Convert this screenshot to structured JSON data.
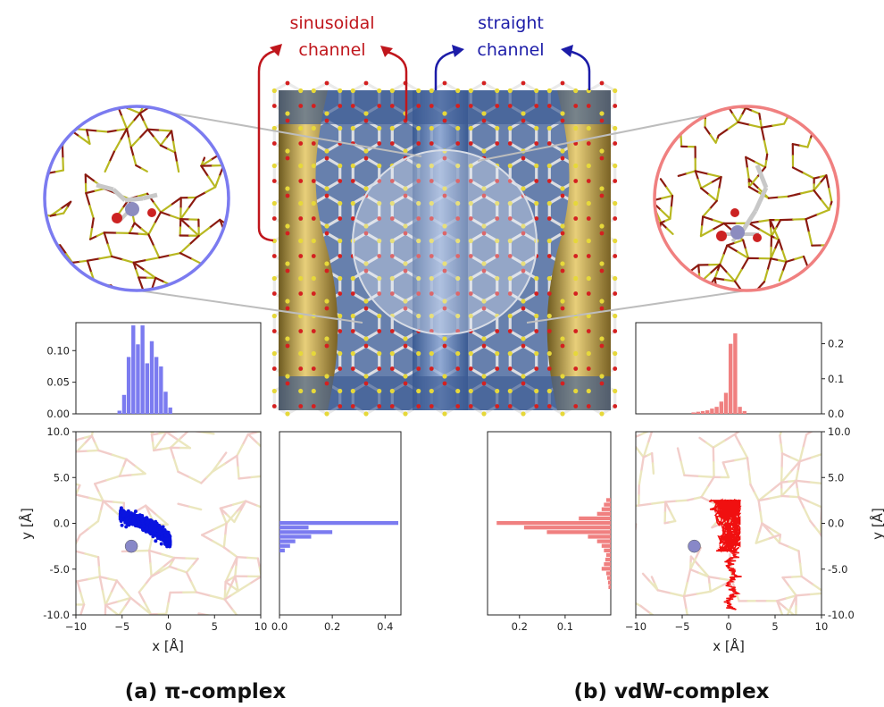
{
  "labels": {
    "sinusoidal": [
      "sinusoidal",
      "channel"
    ],
    "straight": [
      "straight",
      "channel"
    ],
    "caption_a": "(a) π-complex",
    "caption_b": "(b) vdW-complex"
  },
  "colors": {
    "blue": "#7b7bf0",
    "blue_dark": "#0a14e0",
    "red": "#f08080",
    "red_dark": "#f01010",
    "sinusoidal_label": "#c0161c",
    "straight_label": "#1c1ca8",
    "framework_gold": "#c8a840",
    "framework_blue": "#5f7fb8"
  },
  "chart_data": [
    {
      "id": "a-histogram-x",
      "type": "bar",
      "x": [
        -5.25,
        -4.75,
        -4.25,
        -3.75,
        -3.25,
        -2.75,
        -2.25,
        -1.75,
        -1.25,
        -0.75,
        -0.25,
        0.25
      ],
      "values": [
        0.005,
        0.03,
        0.09,
        0.14,
        0.11,
        0.14,
        0.08,
        0.115,
        0.09,
        0.075,
        0.035,
        0.01
      ],
      "xlim": [
        -10,
        10
      ],
      "ylim": [
        0,
        0.14
      ],
      "yticks": [
        0.0,
        0.05,
        0.1
      ],
      "ytick_labels": [
        "0.00",
        "0.05",
        "0.10"
      ],
      "ytick_side": "left"
    },
    {
      "id": "a-scatter",
      "type": "scatter",
      "xlabel": "x [Å]",
      "ylabel": "y [Å]",
      "xlim": [
        -10,
        10
      ],
      "ylim": [
        -10,
        10
      ],
      "xticks": [
        -10,
        -5,
        0,
        5,
        10
      ],
      "xtick_labels": [
        "−10",
        "−5",
        "0",
        "5",
        "10"
      ],
      "yticks": [
        10,
        5,
        0,
        -5,
        -10
      ],
      "ytick_labels": [
        "10.0",
        "5.0",
        "0.0",
        "-5.0",
        "-10.0"
      ],
      "ytick_side": "left",
      "center_atom": [
        -4,
        -2.5
      ],
      "points_band": {
        "x_range": [
          -5.2,
          0.2
        ],
        "y_center": 0.0,
        "y_spread": 0.8
      }
    },
    {
      "id": "a-histogram-y",
      "type": "bar",
      "orientation": "horizontal",
      "y": [
        0.0,
        -0.5,
        -1.0,
        -1.5,
        -2.0,
        -2.5,
        -3.0
      ],
      "values": [
        0.45,
        0.11,
        0.2,
        0.12,
        0.06,
        0.04,
        0.02
      ],
      "xlim": [
        0,
        0.46
      ],
      "ylim": [
        -10,
        10
      ],
      "xticks": [
        0.0,
        0.2,
        0.4
      ],
      "xtick_labels": [
        "0.0",
        "0.2",
        "0.4"
      ]
    },
    {
      "id": "b-histogram-x",
      "type": "bar",
      "x": [
        -3.75,
        -3.25,
        -2.75,
        -2.25,
        -1.75,
        -1.25,
        -0.75,
        -0.25,
        0.25,
        0.75,
        1.25,
        1.75
      ],
      "values": [
        0.004,
        0.006,
        0.008,
        0.01,
        0.015,
        0.02,
        0.035,
        0.06,
        0.2,
        0.23,
        0.02,
        0.008
      ],
      "xlim": [
        -10,
        10
      ],
      "ylim": [
        0,
        0.25
      ],
      "yticks": [
        0.0,
        0.1,
        0.2
      ],
      "ytick_labels": [
        "0.0",
        "0.1",
        "0.2"
      ],
      "ytick_side": "right"
    },
    {
      "id": "b-histogram-y",
      "type": "bar",
      "orientation": "horizontal",
      "inverted_x": true,
      "y": [
        2.5,
        2.0,
        1.5,
        1.0,
        0.5,
        0.0,
        -0.5,
        -1.0,
        -1.5,
        -2.0,
        -2.5,
        -3.0,
        -3.5,
        -4.0,
        -4.5,
        -5.0,
        -5.5,
        -6.0,
        -6.5,
        -7.0
      ],
      "values": [
        0.01,
        0.015,
        0.02,
        0.03,
        0.07,
        0.25,
        0.19,
        0.14,
        0.05,
        0.03,
        0.02,
        0.015,
        0.01,
        0.012,
        0.015,
        0.02,
        0.01,
        0.008,
        0.006,
        0.005
      ],
      "xlim": [
        0,
        0.27
      ],
      "ylim": [
        -10,
        10
      ],
      "xticks": [
        0.2,
        0.1
      ],
      "xtick_labels": [
        "0.2",
        "0.1"
      ]
    },
    {
      "id": "b-trajectory",
      "type": "line",
      "xlabel": "x [Å]",
      "ylabel": "y [Å]",
      "xlim": [
        -10,
        10
      ],
      "ylim": [
        -10,
        10
      ],
      "xticks": [
        -10,
        -5,
        0,
        5,
        10
      ],
      "xtick_labels": [
        "−10",
        "−5",
        "0",
        "5",
        "10"
      ],
      "yticks": [
        10,
        5,
        0,
        -5,
        -10
      ],
      "ytick_labels": [
        "10.0",
        "5.0",
        "0.0",
        "-5.0",
        "-10.0"
      ],
      "ytick_side": "right",
      "center_atom": [
        -3.7,
        -2.5
      ]
    }
  ]
}
